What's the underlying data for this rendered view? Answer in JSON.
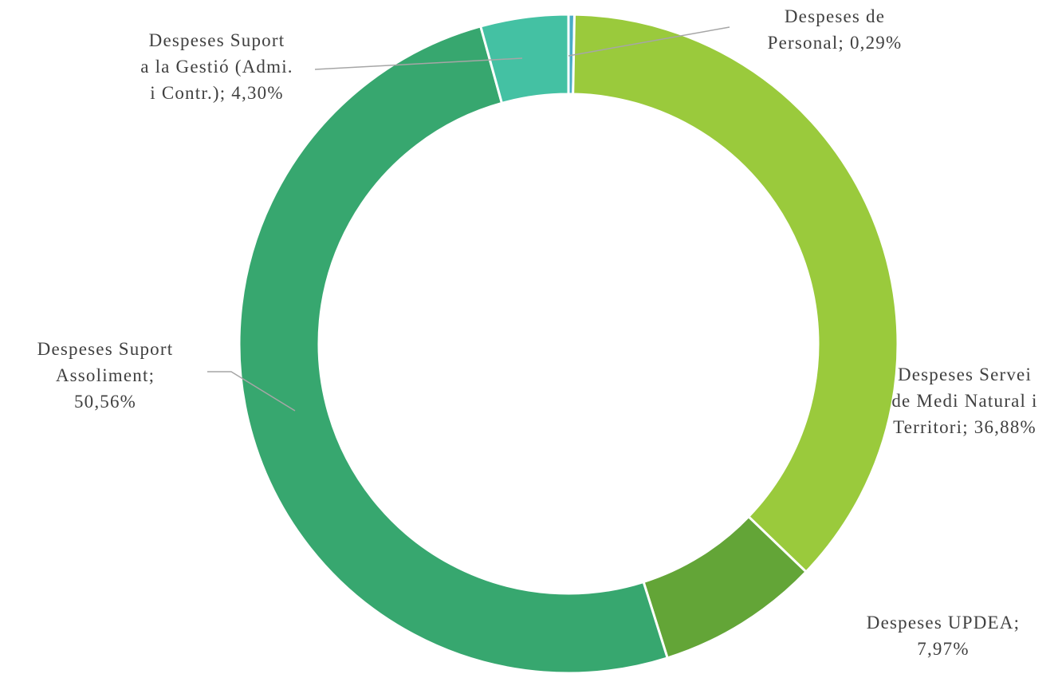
{
  "chart_data": {
    "type": "pie",
    "variant": "doughnut",
    "title": "",
    "legend": "none",
    "slices": [
      {
        "name": "Despeses de Personal",
        "value": 0.29,
        "label_lines": [
          "Despeses de",
          "Personal; 0,29%"
        ],
        "color": "#4AACC6"
      },
      {
        "name": "Despeses Servei de Medi Natural i Territori",
        "value": 36.88,
        "label_lines": [
          "Despeses Servei",
          "de Medi Natural i",
          "Territori; 36,88%"
        ],
        "color": "#9ACA3C"
      },
      {
        "name": "Despeses UPDEA",
        "value": 7.97,
        "label_lines": [
          "Despeses UPDEA;",
          "7,97%"
        ],
        "color": "#63A537"
      },
      {
        "name": "Despeses Suport Assoliment",
        "value": 50.56,
        "label_lines": [
          "Despeses Suport",
          "Assoliment;",
          "50,56%"
        ],
        "color": "#37A76F"
      },
      {
        "name": "Despeses Suport a la Gestió (Admi. i Contr.)",
        "value": 4.3,
        "label_lines": [
          "Despeses Suport",
          "a la Gestió (Admi.",
          "i Contr.); 4,30%"
        ],
        "color": "#44C1A3"
      }
    ]
  }
}
